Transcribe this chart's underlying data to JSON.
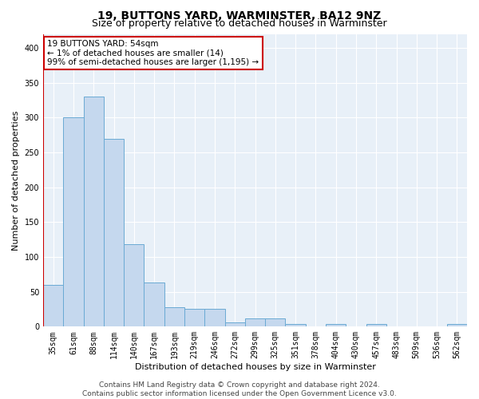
{
  "title": "19, BUTTONS YARD, WARMINSTER, BA12 9NZ",
  "subtitle": "Size of property relative to detached houses in Warminster",
  "xlabel": "Distribution of detached houses by size in Warminster",
  "ylabel": "Number of detached properties",
  "categories": [
    "35sqm",
    "61sqm",
    "88sqm",
    "114sqm",
    "140sqm",
    "167sqm",
    "193sqm",
    "219sqm",
    "246sqm",
    "272sqm",
    "299sqm",
    "325sqm",
    "351sqm",
    "378sqm",
    "404sqm",
    "430sqm",
    "457sqm",
    "483sqm",
    "509sqm",
    "536sqm",
    "562sqm"
  ],
  "values": [
    60,
    300,
    330,
    270,
    118,
    63,
    28,
    26,
    26,
    6,
    12,
    12,
    4,
    0,
    4,
    0,
    4,
    0,
    0,
    0,
    4
  ],
  "bar_color": "#c5d8ee",
  "bar_edge_color": "#6aaad4",
  "annotation_line1": "19 BUTTONS YARD: 54sqm",
  "annotation_line2": "← 1% of detached houses are smaller (14)",
  "annotation_line3": "99% of semi-detached houses are larger (1,195) →",
  "annotation_box_color": "#ffffff",
  "annotation_box_edge_color": "#cc0000",
  "footer_text": "Contains HM Land Registry data © Crown copyright and database right 2024.\nContains public sector information licensed under the Open Government Licence v3.0.",
  "fig_background_color": "#ffffff",
  "plot_background_color": "#e8f0f8",
  "grid_color": "#ffffff",
  "red_line_color": "#cc0000",
  "ylim": [
    0,
    420
  ],
  "yticks": [
    0,
    50,
    100,
    150,
    200,
    250,
    300,
    350,
    400
  ],
  "title_fontsize": 10,
  "subtitle_fontsize": 9,
  "axis_label_fontsize": 8,
  "tick_fontsize": 7,
  "annotation_fontsize": 7.5,
  "footer_fontsize": 6.5
}
